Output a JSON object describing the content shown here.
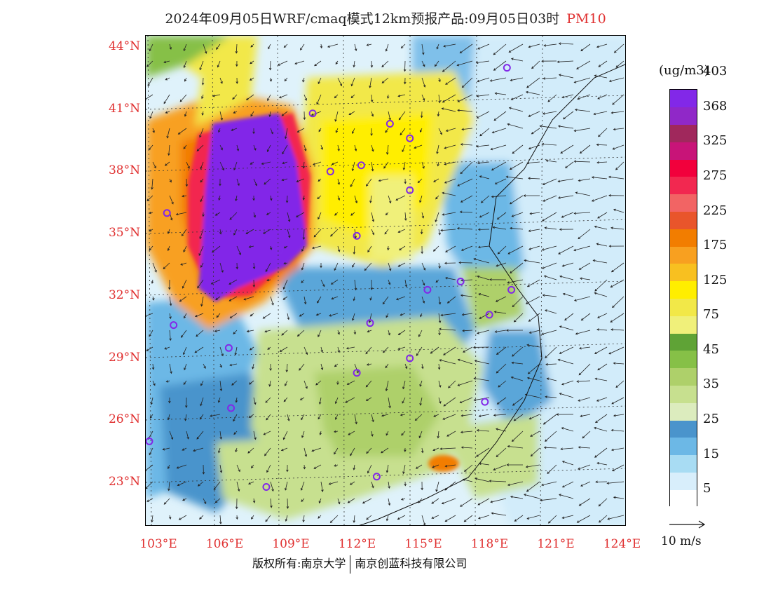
{
  "title": "2024年09月05日WRF/cmaq模式12km预报产品:09月05日03时",
  "pollutant": "PM10",
  "unit_label": "(ug/m3)",
  "y_axis_labels": [
    "44°N",
    "41°N",
    "38°N",
    "35°N",
    "32°N",
    "29°N",
    "26°N",
    "23°N"
  ],
  "x_axis_labels": [
    "103°E",
    "106°E",
    "109°E",
    "112°E",
    "115°E",
    "118°E",
    "121°E",
    "124°E"
  ],
  "legend": {
    "colors": [
      "#ffffff",
      "#d8eefb",
      "#a8dcf3",
      "#6cb8e6",
      "#4a94cc",
      "#dcecbe",
      "#c7e08f",
      "#aed06a",
      "#86c047",
      "#5fa336",
      "#f0f07a",
      "#f2e848",
      "#ffee00",
      "#f8c020",
      "#f8a020",
      "#f27d00",
      "#e9552b",
      "#f26464",
      "#f22850",
      "#f2003c",
      "#c81478",
      "#a0285c",
      "#9028c8",
      "#8228e8"
    ],
    "ticks": [
      "5",
      "15",
      "25",
      "35",
      "45",
      "75",
      "125",
      "175",
      "225",
      "275",
      "325",
      "368",
      "403"
    ]
  },
  "wind_reference_label": "10 m/s",
  "footer": {
    "left": "版权所有:南京大学",
    "right": "南京创蓝科技有限公司"
  },
  "stations": [
    {
      "lon": 119.2,
      "lat": 43.0
    },
    {
      "lon": 110.4,
      "lat": 40.8
    },
    {
      "lon": 113.9,
      "lat": 40.3
    },
    {
      "lon": 114.8,
      "lat": 39.6
    },
    {
      "lon": 107.9,
      "lat": 38.4
    },
    {
      "lon": 111.2,
      "lat": 38.0
    },
    {
      "lon": 112.6,
      "lat": 38.3
    },
    {
      "lon": 114.8,
      "lat": 37.1
    },
    {
      "lon": 103.8,
      "lat": 36.0
    },
    {
      "lon": 108.9,
      "lat": 34.2
    },
    {
      "lon": 112.4,
      "lat": 34.9
    },
    {
      "lon": 115.6,
      "lat": 32.3
    },
    {
      "lon": 117.1,
      "lat": 32.7
    },
    {
      "lon": 119.4,
      "lat": 32.3
    },
    {
      "lon": 118.4,
      "lat": 31.1
    },
    {
      "lon": 104.1,
      "lat": 30.6
    },
    {
      "lon": 113.0,
      "lat": 30.7
    },
    {
      "lon": 106.6,
      "lat": 29.5
    },
    {
      "lon": 114.8,
      "lat": 29.0
    },
    {
      "lon": 112.4,
      "lat": 28.3
    },
    {
      "lon": 118.2,
      "lat": 26.9
    },
    {
      "lon": 106.7,
      "lat": 26.6
    },
    {
      "lon": 103.0,
      "lat": 25.0
    },
    {
      "lon": 113.3,
      "lat": 23.3
    },
    {
      "lon": 108.3,
      "lat": 22.8
    }
  ]
}
